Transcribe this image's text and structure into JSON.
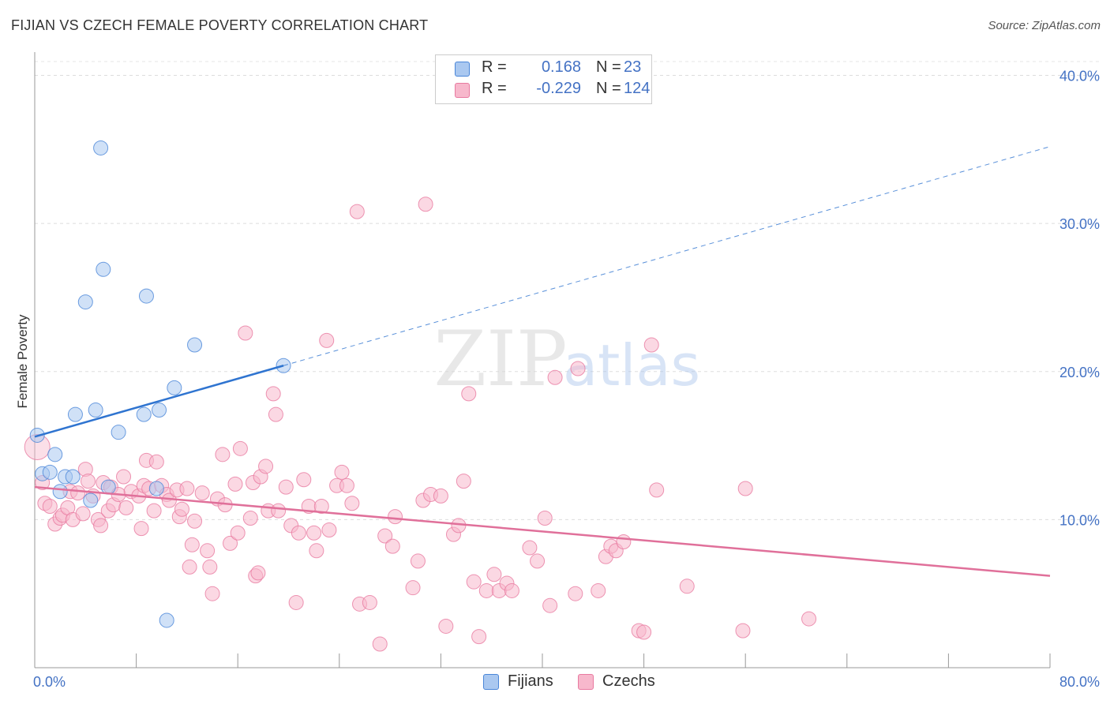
{
  "header": {
    "title": "FIJIAN VS CZECH FEMALE POVERTY CORRELATION CHART",
    "source": "Source: ZipAtlas.com"
  },
  "watermark": {
    "zip": "ZIP",
    "atlas": "atlas"
  },
  "legend_top": {
    "rows": [
      {
        "r_label": "R =",
        "r_value": "0.168",
        "n_label": "N =",
        "n_value": "23",
        "color": "#aac8f0",
        "border": "#4a86d8"
      },
      {
        "r_label": "R =",
        "r_value": "-0.229",
        "n_label": "N =",
        "n_value": "124",
        "color": "#f7b8cc",
        "border": "#e87aa0"
      }
    ]
  },
  "legend_bottom": [
    {
      "label": "Fijians",
      "color": "#aac8f0",
      "border": "#4a86d8"
    },
    {
      "label": "Czechs",
      "color": "#f7b8cc",
      "border": "#e87aa0"
    }
  ],
  "chart_data": {
    "type": "scatter",
    "title": "FIJIAN VS CZECH FEMALE POVERTY CORRELATION CHART",
    "xlabel": "",
    "ylabel": "Female Poverty",
    "xlim": [
      0,
      80
    ],
    "ylim": [
      0,
      42
    ],
    "x_tick_labels": [
      "0.0%",
      "80.0%"
    ],
    "y_ticks": [
      10,
      20,
      30,
      40
    ],
    "y_tick_labels": [
      "10.0%",
      "20.0%",
      "30.0%",
      "40.0%"
    ],
    "grid": true,
    "legend_position": "top-center",
    "series": [
      {
        "name": "Fijians",
        "color": "#aac8f0",
        "stroke": "#4a86d8",
        "trend": {
          "x0": 0,
          "y0": 15.6,
          "x1": 19.6,
          "y1": 20.4,
          "extend_to": 80,
          "color": "#2f74d0"
        },
        "points": [
          [
            0.2,
            15.7
          ],
          [
            0.6,
            13.1
          ],
          [
            1.2,
            13.2
          ],
          [
            1.6,
            14.4
          ],
          [
            2.0,
            11.9
          ],
          [
            2.4,
            12.9
          ],
          [
            3.0,
            12.9
          ],
          [
            3.2,
            17.1
          ],
          [
            4.0,
            24.7
          ],
          [
            4.4,
            11.3
          ],
          [
            4.8,
            17.4
          ],
          [
            5.2,
            35.1
          ],
          [
            5.4,
            26.9
          ],
          [
            5.8,
            12.2
          ],
          [
            6.6,
            15.9
          ],
          [
            8.6,
            17.1
          ],
          [
            8.8,
            25.1
          ],
          [
            9.6,
            12.1
          ],
          [
            9.8,
            17.4
          ],
          [
            10.4,
            3.2
          ],
          [
            11.0,
            18.9
          ],
          [
            12.6,
            21.8
          ],
          [
            19.6,
            20.4
          ]
        ]
      },
      {
        "name": "Czechs",
        "color": "#f7b8cc",
        "stroke": "#e87aa0",
        "trend": {
          "x0": 0,
          "y0": 12.2,
          "x1": 80,
          "y1": 6.2,
          "color": "#e0709a"
        },
        "points": [
          [
            0.2,
            14.9
          ],
          [
            0.6,
            12.5
          ],
          [
            0.8,
            11.1
          ],
          [
            1.2,
            10.9
          ],
          [
            1.6,
            9.7
          ],
          [
            2.0,
            10.1
          ],
          [
            2.2,
            10.3
          ],
          [
            2.6,
            10.8
          ],
          [
            2.8,
            11.9
          ],
          [
            3.0,
            10.0
          ],
          [
            3.4,
            11.8
          ],
          [
            3.8,
            10.4
          ],
          [
            4.0,
            13.4
          ],
          [
            4.2,
            12.6
          ],
          [
            4.6,
            11.6
          ],
          [
            5.0,
            10.0
          ],
          [
            5.2,
            9.6
          ],
          [
            5.4,
            12.5
          ],
          [
            5.8,
            10.6
          ],
          [
            6.0,
            12.2
          ],
          [
            6.2,
            11.0
          ],
          [
            6.6,
            11.7
          ],
          [
            7.0,
            12.9
          ],
          [
            7.2,
            10.8
          ],
          [
            7.6,
            11.9
          ],
          [
            8.2,
            11.6
          ],
          [
            8.4,
            9.4
          ],
          [
            8.6,
            12.3
          ],
          [
            8.8,
            14.0
          ],
          [
            9.0,
            12.1
          ],
          [
            9.4,
            10.6
          ],
          [
            9.6,
            13.9
          ],
          [
            10.0,
            12.3
          ],
          [
            10.4,
            11.7
          ],
          [
            10.6,
            11.3
          ],
          [
            11.2,
            12.0
          ],
          [
            11.4,
            10.2
          ],
          [
            11.6,
            10.7
          ],
          [
            12.0,
            12.1
          ],
          [
            12.2,
            6.8
          ],
          [
            12.4,
            8.3
          ],
          [
            12.6,
            9.9
          ],
          [
            13.2,
            11.8
          ],
          [
            13.6,
            7.9
          ],
          [
            13.8,
            6.8
          ],
          [
            14.0,
            5.0
          ],
          [
            14.4,
            11.4
          ],
          [
            14.8,
            14.4
          ],
          [
            15.0,
            11.0
          ],
          [
            15.4,
            8.4
          ],
          [
            15.8,
            12.4
          ],
          [
            16.0,
            9.1
          ],
          [
            16.2,
            14.8
          ],
          [
            16.6,
            22.6
          ],
          [
            17.0,
            10.1
          ],
          [
            17.2,
            12.5
          ],
          [
            17.4,
            6.2
          ],
          [
            17.6,
            6.4
          ],
          [
            17.8,
            12.9
          ],
          [
            18.2,
            13.6
          ],
          [
            18.4,
            10.6
          ],
          [
            18.8,
            18.5
          ],
          [
            19.0,
            17.1
          ],
          [
            19.2,
            10.6
          ],
          [
            19.8,
            12.2
          ],
          [
            20.2,
            9.6
          ],
          [
            20.6,
            4.4
          ],
          [
            20.8,
            9.1
          ],
          [
            21.2,
            12.7
          ],
          [
            21.6,
            10.9
          ],
          [
            22.0,
            9.1
          ],
          [
            22.2,
            7.9
          ],
          [
            22.6,
            10.9
          ],
          [
            23.0,
            22.1
          ],
          [
            23.2,
            9.3
          ],
          [
            23.8,
            12.3
          ],
          [
            24.2,
            13.2
          ],
          [
            24.6,
            12.3
          ],
          [
            25.0,
            11.1
          ],
          [
            25.4,
            30.8
          ],
          [
            25.6,
            4.3
          ],
          [
            26.4,
            4.4
          ],
          [
            27.2,
            1.6
          ],
          [
            27.6,
            8.9
          ],
          [
            28.2,
            8.2
          ],
          [
            28.4,
            10.2
          ],
          [
            29.8,
            5.4
          ],
          [
            30.2,
            7.2
          ],
          [
            30.6,
            11.3
          ],
          [
            30.8,
            31.3
          ],
          [
            31.2,
            11.7
          ],
          [
            32.0,
            11.6
          ],
          [
            32.4,
            2.8
          ],
          [
            33.0,
            9.0
          ],
          [
            33.4,
            9.6
          ],
          [
            33.8,
            12.6
          ],
          [
            34.2,
            18.5
          ],
          [
            34.6,
            5.8
          ],
          [
            35.0,
            2.1
          ],
          [
            35.6,
            5.2
          ],
          [
            36.2,
            6.3
          ],
          [
            36.6,
            5.2
          ],
          [
            37.2,
            5.7
          ],
          [
            37.6,
            5.2
          ],
          [
            39.0,
            8.1
          ],
          [
            39.6,
            7.2
          ],
          [
            40.2,
            10.1
          ],
          [
            40.6,
            4.2
          ],
          [
            41.0,
            19.6
          ],
          [
            42.6,
            5.0
          ],
          [
            42.8,
            20.2
          ],
          [
            44.4,
            5.2
          ],
          [
            45.0,
            7.5
          ],
          [
            45.4,
            8.2
          ],
          [
            45.8,
            7.9
          ],
          [
            46.4,
            8.5
          ],
          [
            47.6,
            2.5
          ],
          [
            48.0,
            2.4
          ],
          [
            48.6,
            21.8
          ],
          [
            49.0,
            12.0
          ],
          [
            51.4,
            5.5
          ],
          [
            55.8,
            2.5
          ],
          [
            56.0,
            12.1
          ],
          [
            61.0,
            3.3
          ]
        ]
      }
    ]
  }
}
